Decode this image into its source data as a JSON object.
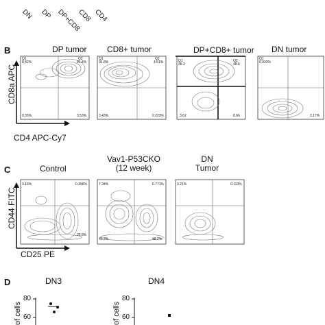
{
  "top_legend": {
    "labels": [
      "DN",
      "DP",
      "DP+CD8",
      "CD8",
      "CD4"
    ]
  },
  "panel_b": {
    "label": "B",
    "y_axis_label": "CD8a APC",
    "x_axis_label": "CD4 APC-Cy7",
    "plots": [
      {
        "title": "DP tumor",
        "q1": "Q1",
        "q1_val": "8.42%",
        "q2": "Q2",
        "q2_val": "81.4%",
        "q3_val": "0.35%",
        "q4_val": "3.53%"
      },
      {
        "title": "CD8+ tumor",
        "q1": "Q1",
        "q1_val": "91.8%",
        "q2": "Q2",
        "q2_val": "4.51%",
        "q3_val": "3.43%",
        "q4_val": "0.223%"
      },
      {
        "title": "DP+CD8+ tumor",
        "q1": "Q1",
        "q1_val": "36.3",
        "q2": "Q2",
        "q2_val": "48.6",
        "q3_val": "3.62",
        "q4_val": "8.66"
      },
      {
        "title": "DN tumor",
        "q1": "Q1",
        "q1_val": "0.933%",
        "q2": "Q2",
        "q2_val": "",
        "q3_val": "",
        "q4_val": "3.17%"
      }
    ]
  },
  "panel_c": {
    "label": "C",
    "y_axis_label": "CD44 FITC",
    "x_axis_label": "CD25 PE",
    "plots": [
      {
        "title": "Control",
        "q1_val": "3.15%",
        "q2_val": "0.356%",
        "q3_val": "",
        "q4_val": "25.8%"
      },
      {
        "title": "Vav1-P53CKO\n(12 week)",
        "q1_val": "7.34%",
        "q2_val": "0.771%",
        "q3_val": "40.3%",
        "q4_val": "48.2%"
      },
      {
        "title": "DN\nTumor",
        "q1_val": "3.21%",
        "q2_val": "0.113%",
        "q3_val": "",
        "q4_val": ""
      }
    ]
  },
  "panel_d": {
    "label": "D",
    "charts": [
      {
        "title": "DN3",
        "ylabel": "of cells",
        "ticks": [
          "80",
          "60"
        ]
      },
      {
        "title": "DN4",
        "ylabel": "of cells",
        "ticks": [
          "80",
          "60"
        ]
      }
    ]
  }
}
